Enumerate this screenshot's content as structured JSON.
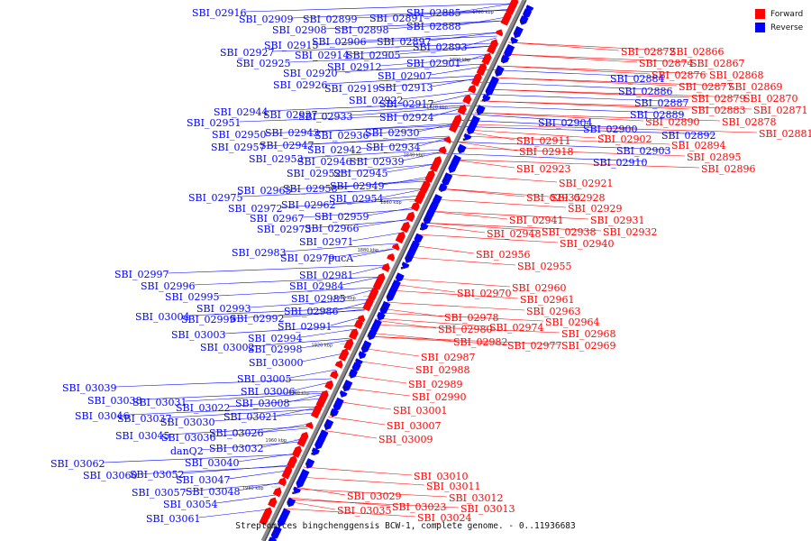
{
  "colors": {
    "forward": "#ff0000",
    "reverse": "#0000ff"
  },
  "legend": {
    "forward_label": "Forward",
    "reverse_label": "Reverse"
  },
  "caption": "Streptomyces bingchenggensis BCW-1, complete genome. - 0..11936683",
  "ticks": [
    "1780 kbp",
    "1800 kbp",
    "1820 kbp",
    "1840 kbp",
    "1860 kbp",
    "1880 kbp",
    "1900 kbp",
    "1920 kbp",
    "1940 kbp",
    "1960 kbp",
    "1980 kbp"
  ],
  "forward_labels": [
    "SBI_02872",
    "SBI_02866",
    "SBI_02874",
    "SBI_02867",
    "SBI_02876",
    "SBI_02868",
    "SBI_02877",
    "SBI_02869",
    "SBI_02879",
    "SBI_02870",
    "SBI_02883",
    "SBI_02871",
    "SBI_02878",
    "SBI_02890",
    "SBI_02881",
    "SBI_02902",
    "SBI_02894",
    "SBI_02911",
    "SBI_02895",
    "SBI_02918",
    "SBI_02896",
    "SBI_02923",
    "SBI_02921",
    "SBI_02935",
    "SBI_02928",
    "SBI_02929",
    "SBI_02941",
    "SBI_02931",
    "SBI_02938",
    "SBI_02932",
    "SBI_02948",
    "SBI_02940",
    "SBI_02956",
    "SBI_02955",
    "SBI_02960",
    "SBI_02970",
    "SBI_02961",
    "SBI_02963",
    "SBI_02978",
    "SBI_02964",
    "SBI_02980",
    "SBI_02974",
    "SBI_02968",
    "SBI_02982",
    "SBI_02977",
    "SBI_02969",
    "SBI_02987",
    "SBI_02988",
    "SBI_02989",
    "SBI_02990",
    "SBI_03001",
    "SBI_03007",
    "SBI_03009",
    "SBI_03010",
    "SBI_03011",
    "SBI_03012",
    "SBI_03029",
    "SBI_03013",
    "SBI_03023",
    "SBI_03035",
    "SBI_03024"
  ],
  "reverse_labels": [
    "SBI_02916",
    "SBI_02909",
    "SBI_02899",
    "SBI_02891",
    "SBI_02885",
    "SBI_02908",
    "SBI_02898",
    "SBI_02888",
    "SBI_02915",
    "SBI_02906",
    "SBI_02897",
    "SBI_02893",
    "SBI_02927",
    "SBI_02914",
    "SBI_02905",
    "SBI_02925",
    "SBI_02901",
    "SBI_02912",
    "SBI_02920",
    "SBI_02907",
    "SBI_02926",
    "SBI_02913",
    "SBI_02919",
    "SBI_02884",
    "SBI_02922",
    "SBI_02886",
    "SBI_02944",
    "SBI_02917",
    "SBI_02887",
    "SBI_02937",
    "SBI_02889",
    "SBI_02933",
    "SBI_02924",
    "SBI_02951",
    "SBI_02904",
    "SBI_02900",
    "SBI_02950",
    "SBI_02943",
    "SBI_02936",
    "SBI_02930",
    "SBI_02892",
    "SBI_02957",
    "SBI_02947",
    "SBI_02942",
    "SBI_02934",
    "SBI_02903",
    "SBI_02953",
    "SBI_02946",
    "SBI_02939",
    "SBI_02910",
    "SBI_02952",
    "SBI_02945",
    "SBI_02949",
    "SBI_02965",
    "SBI_02958",
    "SBI_02975",
    "SBI_02954",
    "SBI_02972",
    "SBI_02962",
    "SBI_02967",
    "SBI_02959",
    "SBI_02973",
    "SBI_02966",
    "SBI_02971",
    "SBI_02983",
    "SBI_02979",
    "pucA",
    "SBI_02997",
    "SBI_02981",
    "SBI_02996",
    "SBI_02984",
    "SBI_02995",
    "SBI_02985",
    "SBI_02993",
    "SBI_02986",
    "SBI_03004",
    "SBI_02999",
    "SBI_02992",
    "SBI_02991",
    "SBI_03003",
    "SBI_02994",
    "SBI_03002",
    "SBI_02998",
    "SBI_03000",
    "SBI_03005",
    "SBI_03039",
    "SBI_03006",
    "SBI_03038",
    "SBI_03031",
    "SBI_03008",
    "SBI_03022",
    "SBI_03046",
    "SBI_03037",
    "SBI_03030",
    "SBI_03021",
    "SBI_03045",
    "SBI_03036",
    "SBI_03026",
    "danQ2",
    "SBI_03032",
    "SBI_03040",
    "SBI_03062",
    "SBI_03060",
    "SBI_03052",
    "SBI_03047",
    "SBI_03048",
    "SBI_03057",
    "SBI_03054",
    "SBI_03061"
  ]
}
